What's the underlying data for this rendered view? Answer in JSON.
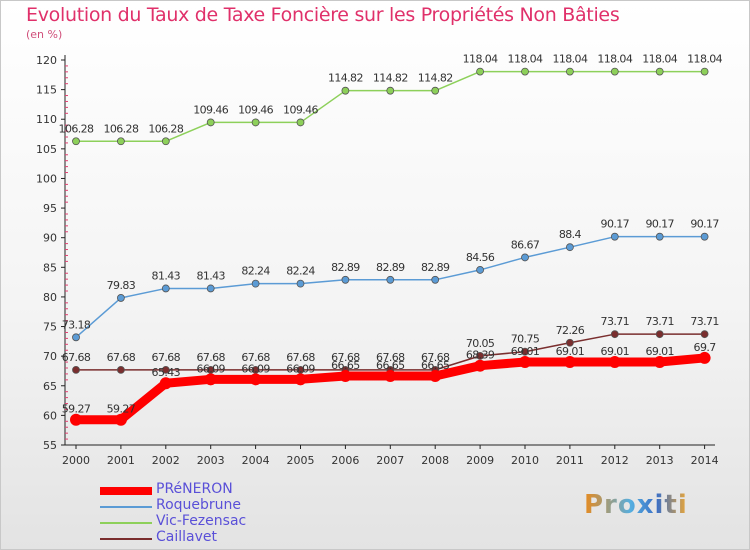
{
  "title": "Evolution du Taux de Taxe Foncière sur les Propriétés Non Bâties",
  "unit_label": "(en %)",
  "logo_text": "Proxiti",
  "chart_data": {
    "type": "line",
    "title": "Evolution du Taux de Taxe Foncière sur les Propriétés Non Bâties",
    "ylabel": "(en %)",
    "xlabel": "",
    "x": [
      "2000",
      "2001",
      "2002",
      "2003",
      "2004",
      "2005",
      "2006",
      "2007",
      "2008",
      "2009",
      "2010",
      "2011",
      "2012",
      "2013",
      "2014"
    ],
    "ylim": [
      55,
      120
    ],
    "yticks": [
      55,
      60,
      65,
      70,
      75,
      80,
      85,
      90,
      95,
      100,
      105,
      110,
      115,
      120
    ],
    "grid": false,
    "legend_position": "bottom-left",
    "series": [
      {
        "name": "PRéNERON",
        "color": "#ff0000",
        "values": [
          59.27,
          59.27,
          65.43,
          66.09,
          66.09,
          66.09,
          66.65,
          66.65,
          66.65,
          68.39,
          69.01,
          69.01,
          69.01,
          69.01,
          69.7
        ]
      },
      {
        "name": "Roquebrune",
        "color": "#5b9bd5",
        "values": [
          73.18,
          79.83,
          81.43,
          81.43,
          82.24,
          82.24,
          82.89,
          82.89,
          82.89,
          84.56,
          86.67,
          88.4,
          90.17,
          90.17,
          90.17
        ]
      },
      {
        "name": "Vic-Fezensac",
        "color": "#8dd05a",
        "values": [
          106.28,
          106.28,
          106.28,
          109.46,
          109.46,
          109.46,
          114.82,
          114.82,
          114.82,
          118.04,
          118.04,
          118.04,
          118.04,
          118.04,
          118.04
        ]
      },
      {
        "name": "Caillavet",
        "color": "#7a2e2e",
        "values": [
          67.68,
          67.68,
          67.68,
          67.68,
          67.68,
          67.68,
          67.68,
          67.68,
          67.68,
          70.05,
          70.75,
          72.26,
          73.71,
          73.71,
          73.71
        ]
      }
    ]
  }
}
